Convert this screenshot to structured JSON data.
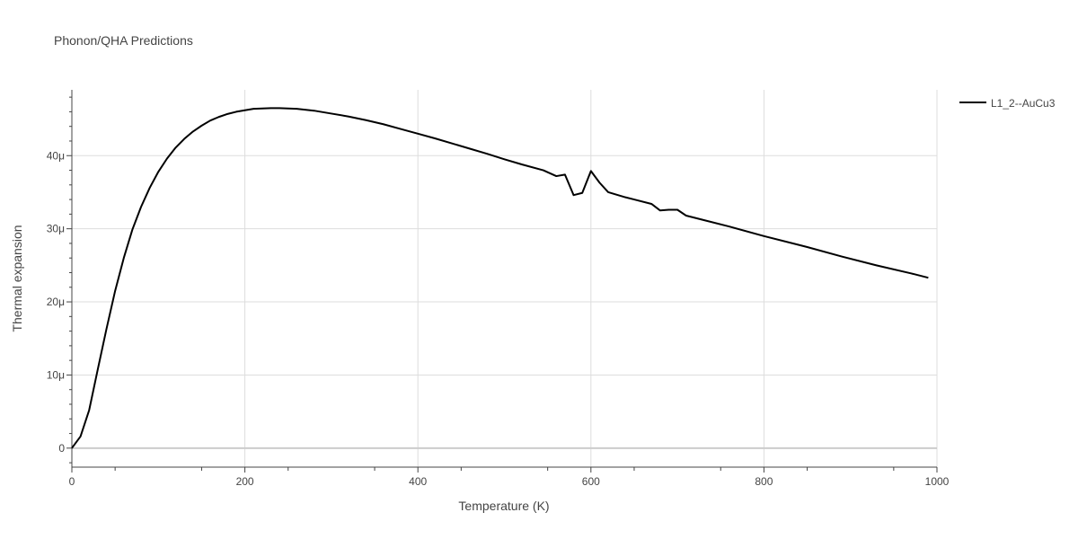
{
  "chart_data": {
    "type": "line",
    "title": "Phonon/QHA Predictions",
    "xlabel": "Temperature (K)",
    "ylabel": "Thermal expansion",
    "xlim": [
      0,
      1000
    ],
    "ylim": [
      -2.6,
      49
    ],
    "x_ticks": [
      0,
      200,
      400,
      600,
      800,
      1000
    ],
    "x_tick_labels": [
      "0",
      "200",
      "400",
      "600",
      "800",
      "1000"
    ],
    "y_ticks": [
      0,
      10,
      20,
      30,
      40
    ],
    "y_tick_labels": [
      "0",
      "10μ",
      "20μ",
      "30μ",
      "40μ"
    ],
    "grid": true,
    "legend_position": "top-right",
    "line_color": "#000000",
    "series": [
      {
        "name": "L1_2--AuCu3",
        "x": [
          0,
          10,
          20,
          30,
          40,
          50,
          60,
          70,
          80,
          90,
          100,
          110,
          120,
          130,
          140,
          150,
          160,
          170,
          180,
          190,
          200,
          210,
          220,
          230,
          240,
          250,
          260,
          280,
          300,
          320,
          340,
          360,
          380,
          400,
          420,
          440,
          460,
          480,
          500,
          520,
          545,
          560,
          570,
          580,
          590,
          600,
          610,
          620,
          640,
          650,
          670,
          680,
          690,
          700,
          710,
          730,
          760,
          800,
          850,
          890,
          930,
          970,
          990
        ],
        "y": [
          0,
          1.6,
          5.2,
          10.8,
          16.3,
          21.5,
          26.0,
          29.9,
          33.0,
          35.6,
          37.8,
          39.6,
          41.1,
          42.3,
          43.3,
          44.1,
          44.8,
          45.3,
          45.7,
          46.0,
          46.2,
          46.4,
          46.45,
          46.5,
          46.5,
          46.45,
          46.4,
          46.15,
          45.75,
          45.35,
          44.85,
          44.3,
          43.65,
          43.0,
          42.35,
          41.65,
          40.95,
          40.25,
          39.5,
          38.8,
          38.0,
          37.2,
          37.4,
          34.6,
          34.9,
          37.9,
          36.3,
          35.0,
          34.3,
          34.0,
          33.4,
          32.5,
          32.6,
          32.6,
          31.8,
          31.2,
          30.3,
          29.0,
          27.5,
          26.2,
          25.0,
          23.9,
          23.3
        ]
      }
    ]
  }
}
